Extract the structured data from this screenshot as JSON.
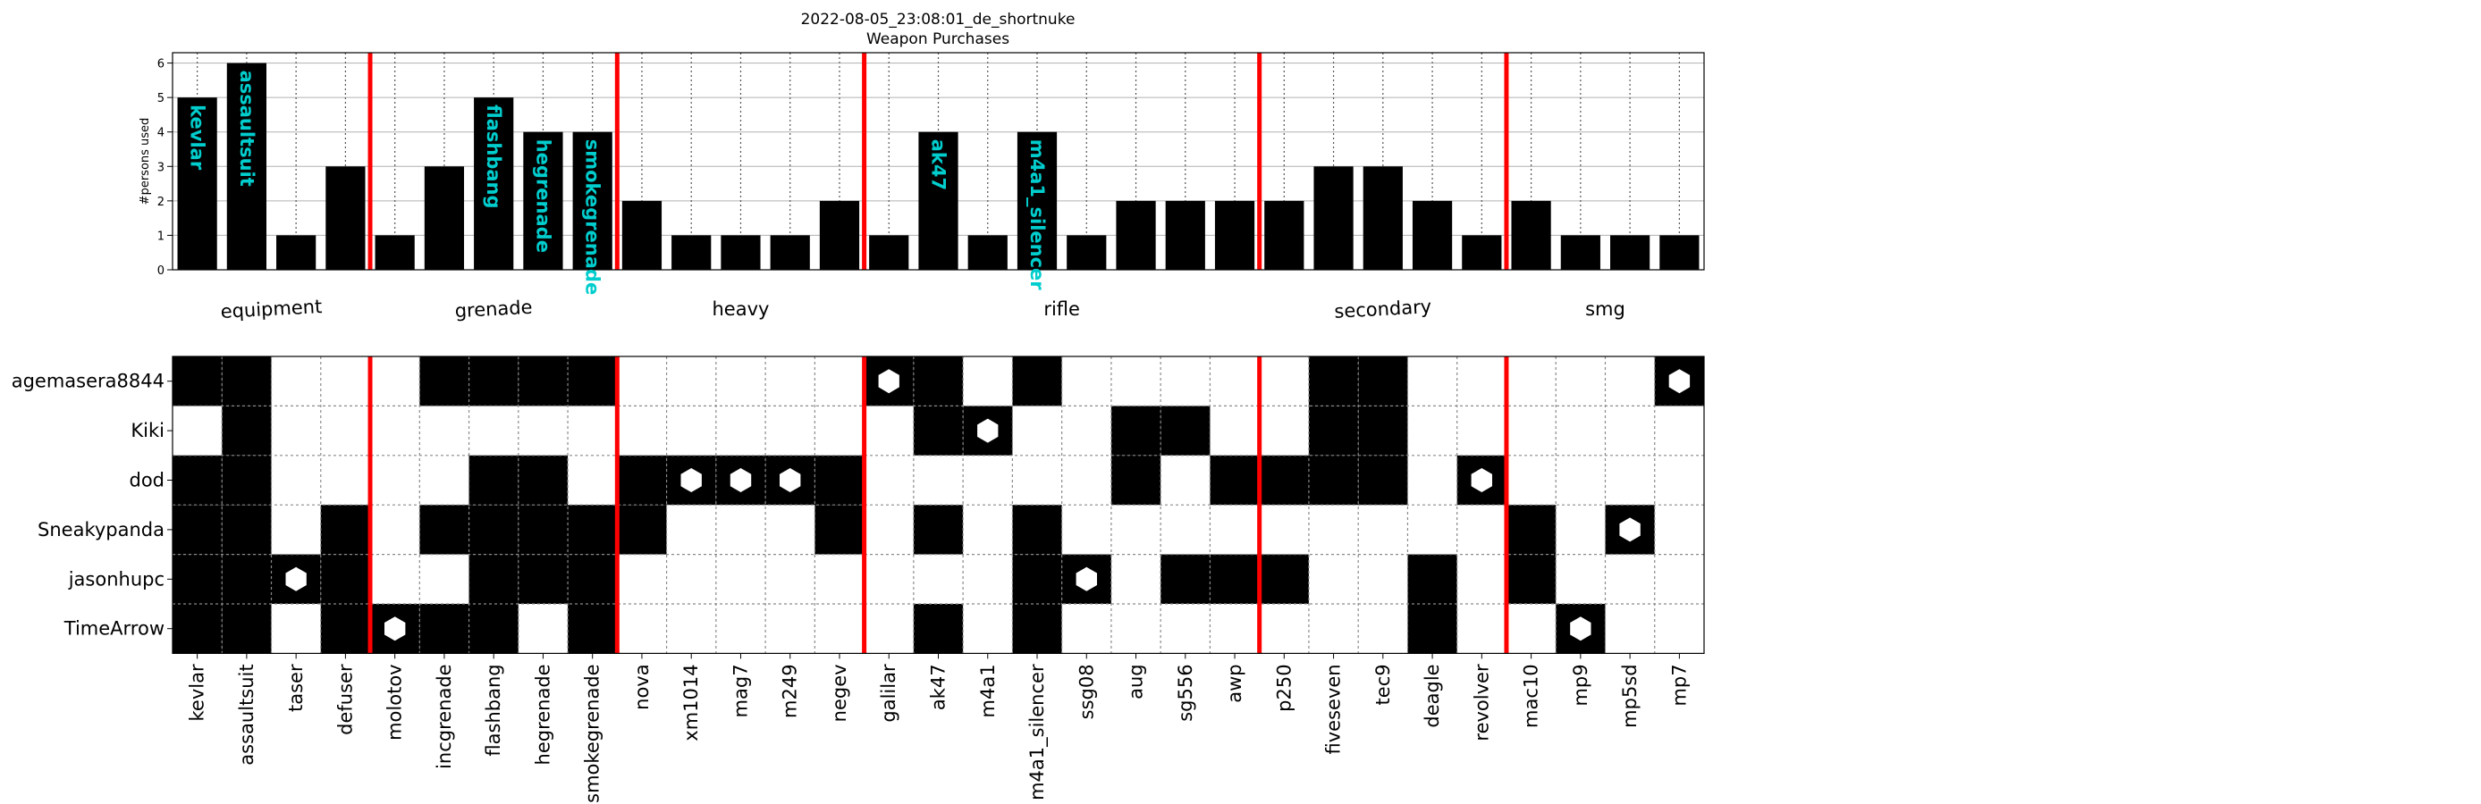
{
  "title": "2022-08-05_23:08:01_de_shortnuke",
  "subtitle": "Weapon Purchases",
  "chart_data": [
    {
      "type": "bar",
      "ylabel": "#persons used",
      "ylim": [
        0,
        6.3
      ],
      "yticks": [
        "0",
        "1",
        "2",
        "3",
        "4",
        "5",
        "6"
      ],
      "grid": "y-solid, x-dotted",
      "categories": [
        "kevlar",
        "assaultsuit",
        "taser",
        "defuser",
        "molotov",
        "incgrenade",
        "flashbang",
        "hegrenade",
        "smokegrenade",
        "nova",
        "xm1014",
        "mag7",
        "m249",
        "negev",
        "galilar",
        "ak47",
        "m4a1",
        "m4a1_silencer",
        "ssg08",
        "aug",
        "sg556",
        "awp",
        "p250",
        "fiveseven",
        "tec9",
        "deagle",
        "revolver",
        "mac10",
        "mp9",
        "mp5sd",
        "mp7"
      ],
      "values": [
        5,
        6,
        1,
        3,
        1,
        3,
        5,
        4,
        4,
        2,
        1,
        1,
        1,
        2,
        1,
        4,
        1,
        4,
        1,
        2,
        2,
        2,
        2,
        3,
        3,
        2,
        1,
        2,
        1,
        1,
        1
      ],
      "bar_labels": [
        "kevlar",
        "assaultsuit",
        "",
        "",
        "",
        "",
        "flashbang",
        "hegrenade",
        "smokegrenade",
        "",
        "",
        "",
        "",
        "",
        "",
        "ak47",
        "",
        "m4a1_silencer",
        "",
        "",
        "",
        "",
        "",
        "",
        "",
        "",
        "",
        "",
        "",
        "",
        ""
      ],
      "bar_label_color": "#00cdcd",
      "bar_color": "#000000",
      "groups": [
        {
          "name": "equipment",
          "start": 0,
          "end": 3
        },
        {
          "name": "grenade",
          "start": 4,
          "end": 8
        },
        {
          "name": "heavy",
          "start": 9,
          "end": 13
        },
        {
          "name": "rifle",
          "start": 14,
          "end": 21
        },
        {
          "name": "secondary",
          "start": 22,
          "end": 26
        },
        {
          "name": "smg",
          "start": 27,
          "end": 30
        }
      ],
      "group_boundaries_after": [
        3,
        8,
        13,
        21,
        26
      ],
      "separator_color": "#ff0000"
    },
    {
      "type": "heatmap",
      "rows": [
        "agemasera8844",
        "Kiki",
        "dod",
        "Sneakypanda",
        "jasonhupc",
        "TimeArrow"
      ],
      "columns": [
        "kevlar",
        "assaultsuit",
        "taser",
        "defuser",
        "molotov",
        "incgrenade",
        "flashbang",
        "hegrenade",
        "smokegrenade",
        "nova",
        "xm1014",
        "mag7",
        "m249",
        "negev",
        "galilar",
        "ak47",
        "m4a1",
        "m4a1_silencer",
        "ssg08",
        "aug",
        "sg556",
        "awp",
        "p250",
        "fiveseven",
        "tec9",
        "deagle",
        "revolver",
        "mac10",
        "mp9",
        "mp5sd",
        "mp7"
      ],
      "filled": [
        [
          1,
          1,
          0,
          0,
          0,
          1,
          1,
          1,
          1,
          0,
          0,
          0,
          0,
          0,
          1,
          1,
          0,
          1,
          0,
          0,
          0,
          0,
          0,
          1,
          1,
          0,
          0,
          0,
          0,
          0,
          1
        ],
        [
          0,
          1,
          0,
          0,
          0,
          0,
          0,
          0,
          0,
          0,
          0,
          0,
          0,
          0,
          0,
          1,
          1,
          0,
          0,
          1,
          1,
          0,
          0,
          1,
          1,
          0,
          0,
          0,
          0,
          0,
          0
        ],
        [
          1,
          1,
          0,
          0,
          0,
          0,
          1,
          1,
          0,
          1,
          1,
          1,
          1,
          1,
          0,
          0,
          0,
          0,
          0,
          1,
          0,
          1,
          1,
          1,
          1,
          0,
          1,
          0,
          0,
          0,
          0
        ],
        [
          1,
          1,
          0,
          1,
          0,
          1,
          1,
          1,
          1,
          1,
          0,
          0,
          0,
          1,
          0,
          1,
          0,
          1,
          0,
          0,
          0,
          0,
          0,
          0,
          0,
          0,
          0,
          1,
          0,
          1,
          0
        ],
        [
          1,
          1,
          1,
          1,
          0,
          0,
          1,
          1,
          1,
          0,
          0,
          0,
          0,
          0,
          0,
          0,
          0,
          1,
          1,
          0,
          1,
          1,
          1,
          0,
          0,
          1,
          0,
          1,
          0,
          0,
          0
        ],
        [
          1,
          1,
          0,
          1,
          1,
          1,
          1,
          0,
          1,
          0,
          0,
          0,
          0,
          0,
          0,
          1,
          0,
          1,
          0,
          0,
          0,
          0,
          0,
          0,
          0,
          1,
          0,
          0,
          1,
          0,
          0
        ]
      ],
      "markers": [
        [
          0,
          0,
          0,
          0,
          0,
          0,
          0,
          0,
          0,
          0,
          0,
          0,
          0,
          0,
          1,
          0,
          0,
          0,
          0,
          0,
          0,
          0,
          0,
          0,
          0,
          0,
          0,
          0,
          0,
          0,
          1
        ],
        [
          0,
          0,
          0,
          0,
          0,
          0,
          0,
          0,
          0,
          0,
          0,
          0,
          0,
          0,
          0,
          0,
          1,
          0,
          0,
          0,
          0,
          0,
          0,
          0,
          0,
          0,
          0,
          0,
          0,
          0,
          0
        ],
        [
          0,
          0,
          0,
          0,
          0,
          0,
          0,
          0,
          0,
          0,
          1,
          1,
          1,
          0,
          0,
          0,
          0,
          0,
          0,
          0,
          0,
          0,
          0,
          0,
          0,
          0,
          1,
          0,
          0,
          0,
          0
        ],
        [
          0,
          0,
          0,
          0,
          0,
          0,
          0,
          0,
          0,
          0,
          0,
          0,
          0,
          0,
          0,
          0,
          0,
          0,
          0,
          0,
          0,
          0,
          0,
          0,
          0,
          0,
          0,
          0,
          0,
          1,
          0
        ],
        [
          0,
          0,
          1,
          0,
          0,
          0,
          0,
          0,
          0,
          0,
          0,
          0,
          0,
          0,
          0,
          0,
          0,
          0,
          1,
          0,
          0,
          0,
          0,
          0,
          0,
          0,
          0,
          0,
          0,
          0,
          0
        ],
        [
          0,
          0,
          0,
          0,
          1,
          0,
          0,
          0,
          0,
          0,
          0,
          0,
          0,
          0,
          0,
          0,
          0,
          0,
          0,
          0,
          0,
          0,
          0,
          0,
          0,
          0,
          0,
          0,
          1,
          0,
          0
        ]
      ],
      "marker_shape": "hexagon",
      "filled_color": "#000000",
      "marker_color": "#ffffff",
      "group_boundaries_after": [
        3,
        8,
        13,
        21,
        26
      ],
      "separator_color": "#ff0000"
    }
  ]
}
